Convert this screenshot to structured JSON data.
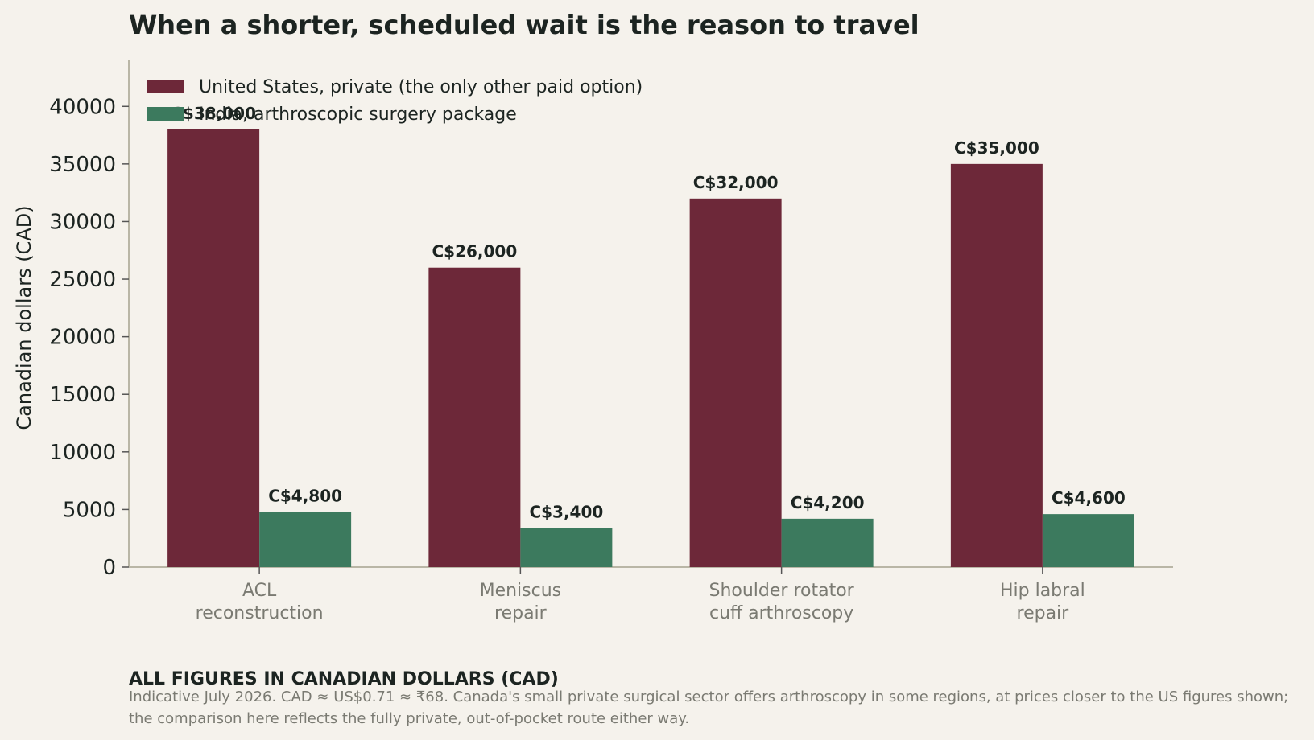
{
  "chart_data": {
    "type": "bar",
    "title": "When a shorter, scheduled wait is the reason to travel",
    "xlabel": "",
    "ylabel": "Canadian dollars (CAD)",
    "ylim": [
      0,
      44000
    ],
    "yticks": [
      0,
      5000,
      10000,
      15000,
      20000,
      25000,
      30000,
      35000,
      40000
    ],
    "categories": [
      [
        "ACL",
        "reconstruction"
      ],
      [
        "Meniscus",
        "repair"
      ],
      [
        "Shoulder rotator",
        "cuff arthroscopy"
      ],
      [
        "Hip labral",
        "repair"
      ]
    ],
    "series": [
      {
        "name": "United States, private (the only other paid option)",
        "color": "#6d2839",
        "values": [
          38000,
          26000,
          32000,
          35000
        ],
        "labels": [
          "C$38,000",
          "C$26,000",
          "C$32,000",
          "C$35,000"
        ]
      },
      {
        "name": "India, arthroscopic surgery package",
        "color": "#3c7a5e",
        "values": [
          4800,
          3400,
          4200,
          4600
        ],
        "labels": [
          "C$4,800",
          "C$3,400",
          "C$4,200",
          "C$4,600"
        ]
      }
    ],
    "legend_position": "top-left",
    "grid": false
  },
  "notes": {
    "heading": "ALL FIGURES IN CANADIAN DOLLARS (CAD)",
    "body": "Indicative July 2026. CAD ≈ US$0.71 ≈ ₹68. Canada's small private surgical sector offers arthroscopy in some regions, at prices closer to the US figures shown; the comparison here reflects the fully private, out-of-pocket route either way."
  }
}
